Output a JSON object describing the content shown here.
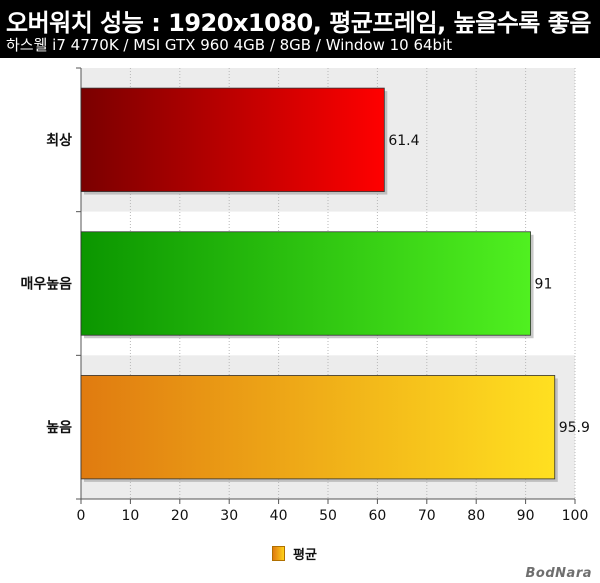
{
  "header": {
    "title": "오버워치 성능 : 1920x1080, 평균프레임, 높을수록 좋음",
    "subtitle": "하스웰 i7 4770K / MSI GTX 960 4GB / 8GB / Window 10 64bit"
  },
  "chart_data": {
    "type": "bar",
    "orientation": "horizontal",
    "categories": [
      "최상",
      "매우높음",
      "높음"
    ],
    "series": [
      {
        "name": "평균",
        "values": [
          61.4,
          91,
          95.9
        ]
      }
    ],
    "value_labels": [
      "61.4",
      "91",
      "95.9"
    ],
    "bar_colors": [
      {
        "from": "#7a0000",
        "to": "#ff0000"
      },
      {
        "from": "#0b9600",
        "to": "#50f020"
      },
      {
        "from": "#e07b10",
        "to": "#ffe020"
      }
    ],
    "xlim": [
      0,
      100
    ],
    "xticks": [
      0,
      10,
      20,
      30,
      40,
      50,
      60,
      70,
      80,
      90,
      100
    ],
    "grid": true,
    "legend_position": "bottom-center"
  },
  "legend": {
    "label": "평균",
    "color": "#f0a010"
  },
  "watermark": "BodNara"
}
